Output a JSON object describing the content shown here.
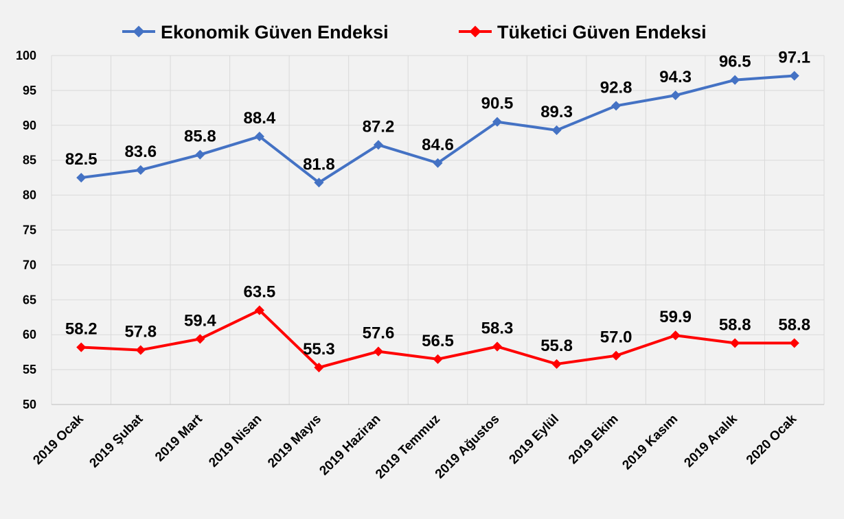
{
  "chart_data": {
    "type": "line",
    "categories": [
      "2019 Ocak",
      "2019 Şubat",
      "2019 Mart",
      "2019 Nisan",
      "2019 Mayıs",
      "2019 Haziran",
      "2019 Temmuz",
      "2019 Ağustos",
      "2019 Eylül",
      "2019 Ekim",
      "2019 Kasım",
      "2019 Aralık",
      "2020 Ocak"
    ],
    "series": [
      {
        "name": "Ekonomik Güven Endeksi",
        "color": "#4472c4",
        "values": [
          82.5,
          83.6,
          85.8,
          88.4,
          81.8,
          87.2,
          84.6,
          90.5,
          89.3,
          92.8,
          94.3,
          96.5,
          97.1
        ]
      },
      {
        "name": "Tüketici Güven Endeksi",
        "color": "#ff0000",
        "values": [
          58.2,
          57.8,
          59.4,
          63.5,
          55.3,
          57.6,
          56.5,
          58.3,
          55.8,
          57.0,
          59.9,
          58.8,
          58.8
        ]
      }
    ],
    "ylim": [
      50,
      100
    ],
    "yticks": [
      50,
      55,
      60,
      65,
      70,
      75,
      80,
      85,
      90,
      95,
      100
    ],
    "grid": true,
    "legend": "top",
    "data_labels": true,
    "title": "",
    "xlabel": "",
    "ylabel": ""
  }
}
